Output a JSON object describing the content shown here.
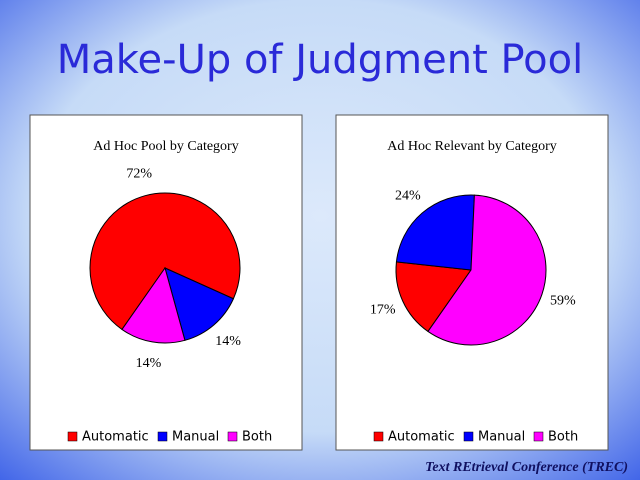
{
  "title": "Make-Up of Judgment Pool",
  "footer": "Text REtrieval Conference (TREC)",
  "chart_data": [
    {
      "type": "pie",
      "title": "Ad Hoc Pool by Category",
      "categories": [
        "Automatic",
        "Manual",
        "Both"
      ],
      "values": [
        72,
        14,
        14
      ],
      "value_labels": [
        "72%",
        "14%",
        "14%"
      ],
      "colors": [
        "#ff0000",
        "#0000ff",
        "#ff00ff"
      ],
      "legend": "bottom"
    },
    {
      "type": "pie",
      "title": "Ad Hoc Relevant by Category",
      "categories": [
        "Automatic",
        "Manual",
        "Both"
      ],
      "values": [
        17,
        24,
        59
      ],
      "value_labels": [
        "17%",
        "24%",
        "59%"
      ],
      "colors": [
        "#ff0000",
        "#0000ff",
        "#ff00ff"
      ],
      "legend": "bottom"
    }
  ]
}
